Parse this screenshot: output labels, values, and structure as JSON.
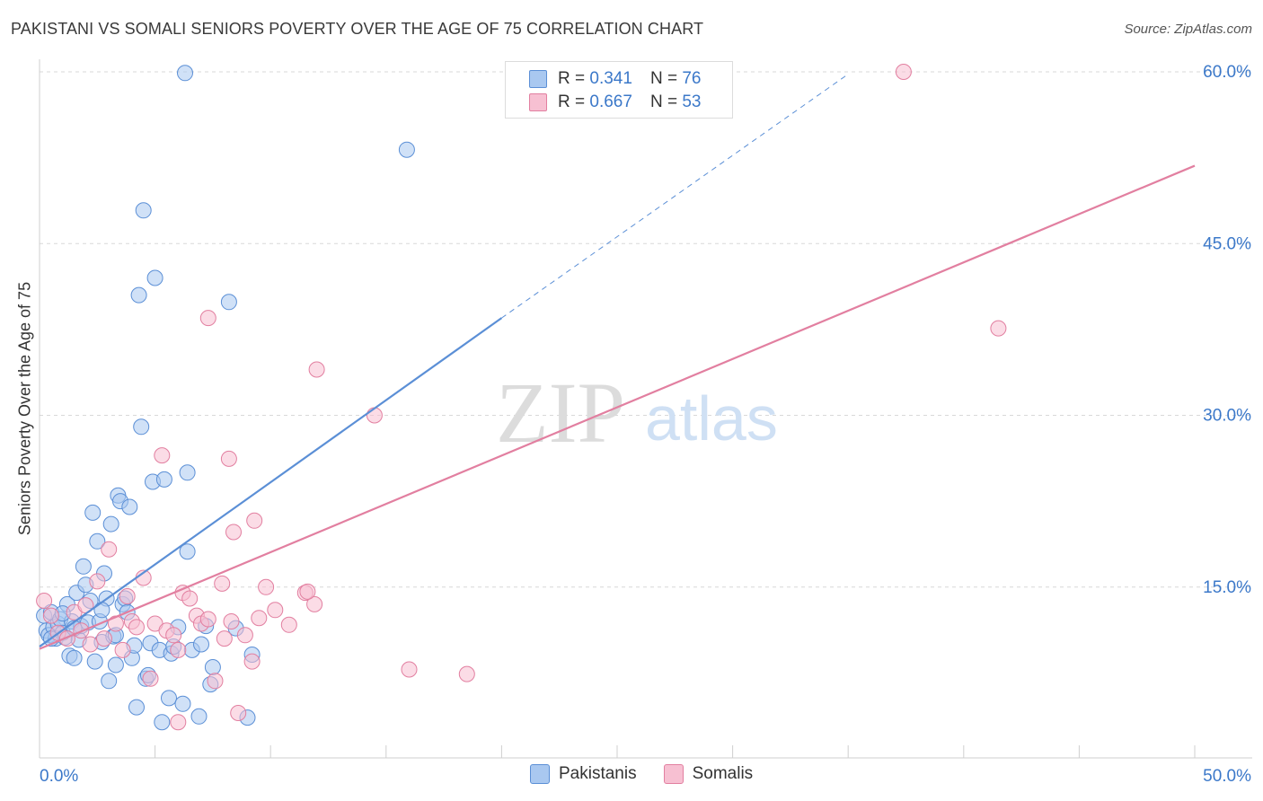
{
  "title": "PAKISTANI VS SOMALI SENIORS POVERTY OVER THE AGE OF 75 CORRELATION CHART",
  "source": "Source: ZipAtlas.com",
  "watermark": {
    "zip": "ZIP",
    "atlas": "atlas"
  },
  "legend": {
    "r_label": "R =",
    "n_label": "N =",
    "series": [
      {
        "r": "0.341",
        "n": "76",
        "color": "#a9c8f0",
        "border": "#5b8fd6"
      },
      {
        "r": "0.667",
        "n": "53",
        "color": "#f7c0d2",
        "border": "#e27fa0"
      }
    ]
  },
  "bottom_legend": [
    "Pakistanis",
    "Somalis"
  ],
  "chart_data": {
    "type": "scatter",
    "title": "PAKISTANI VS SOMALI SENIORS POVERTY OVER THE AGE OF 75 CORRELATION CHART",
    "xlabel": "",
    "ylabel": "Seniors Poverty Over the Age of 75",
    "xlim": [
      0,
      50
    ],
    "ylim": [
      0,
      60
    ],
    "x_tick_labels": [
      "0.0%",
      "50.0%"
    ],
    "y_ticks": [
      15,
      30,
      45,
      60
    ],
    "y_tick_labels": [
      "15.0%",
      "30.0%",
      "45.0%",
      "60.0%"
    ],
    "grid": "horizontal dashed",
    "legend_position": "top-center",
    "series": [
      {
        "name": "Pakistanis",
        "color": "#5b8fd6",
        "fill": "#a9c8f0",
        "trend": {
          "x0": 0,
          "y0": 9.8,
          "x1": 20,
          "y1": 38.5,
          "dashed_to": {
            "x": 35,
            "y": 59.8
          }
        },
        "points": [
          [
            0.2,
            12.5
          ],
          [
            0.3,
            11.2
          ],
          [
            0.4,
            10.8
          ],
          [
            0.5,
            12.8
          ],
          [
            0.6,
            11.5
          ],
          [
            0.7,
            10.5
          ],
          [
            0.8,
            11.8
          ],
          [
            0.9,
            12.2
          ],
          [
            1.0,
            11.0
          ],
          [
            1.1,
            10.6
          ],
          [
            1.2,
            13.5
          ],
          [
            1.3,
            9.0
          ],
          [
            1.4,
            12.0
          ],
          [
            1.5,
            8.8
          ],
          [
            1.6,
            14.5
          ],
          [
            1.7,
            10.4
          ],
          [
            1.8,
            11.6
          ],
          [
            1.9,
            16.8
          ],
          [
            2.0,
            15.2
          ],
          [
            2.1,
            11.9
          ],
          [
            2.2,
            13.8
          ],
          [
            2.3,
            21.5
          ],
          [
            2.4,
            8.5
          ],
          [
            2.5,
            19.0
          ],
          [
            2.6,
            12.0
          ],
          [
            2.7,
            10.2
          ],
          [
            2.8,
            16.2
          ],
          [
            2.9,
            14.0
          ],
          [
            3.0,
            6.8
          ],
          [
            3.1,
            20.5
          ],
          [
            3.2,
            10.7
          ],
          [
            3.3,
            8.2
          ],
          [
            3.4,
            23.0
          ],
          [
            3.5,
            22.5
          ],
          [
            3.6,
            13.5
          ],
          [
            3.7,
            14.0
          ],
          [
            3.8,
            12.8
          ],
          [
            3.9,
            22.0
          ],
          [
            4.0,
            8.8
          ],
          [
            4.1,
            9.9
          ],
          [
            4.2,
            4.5
          ],
          [
            4.3,
            40.5
          ],
          [
            4.4,
            29.0
          ],
          [
            4.5,
            47.9
          ],
          [
            4.6,
            7.0
          ],
          [
            4.7,
            7.3
          ],
          [
            4.8,
            10.1
          ],
          [
            4.9,
            24.2
          ],
          [
            5.0,
            42.0
          ],
          [
            5.2,
            9.5
          ],
          [
            5.3,
            3.2
          ],
          [
            5.4,
            24.4
          ],
          [
            5.6,
            5.3
          ],
          [
            5.7,
            9.2
          ],
          [
            5.8,
            9.8
          ],
          [
            6.0,
            11.5
          ],
          [
            6.2,
            4.8
          ],
          [
            6.4,
            18.1
          ],
          [
            6.6,
            9.5
          ],
          [
            6.9,
            3.7
          ],
          [
            7.0,
            10.0
          ],
          [
            7.2,
            11.6
          ],
          [
            6.3,
            59.9
          ],
          [
            6.4,
            25.0
          ],
          [
            7.5,
            8.0
          ],
          [
            7.4,
            6.5
          ],
          [
            8.2,
            39.9
          ],
          [
            8.5,
            11.4
          ],
          [
            9.0,
            3.6
          ],
          [
            9.2,
            9.1
          ],
          [
            15.9,
            53.2
          ],
          [
            1.0,
            12.7
          ],
          [
            1.5,
            11.4
          ],
          [
            2.7,
            13.0
          ],
          [
            3.3,
            10.8
          ],
          [
            0.5,
            10.5
          ]
        ]
      },
      {
        "name": "Somalis",
        "color": "#e27fa0",
        "fill": "#f7c0d2",
        "trend": {
          "x0": 0,
          "y0": 9.6,
          "x1": 50,
          "y1": 51.8
        },
        "points": [
          [
            0.2,
            13.8
          ],
          [
            0.5,
            12.5
          ],
          [
            0.8,
            11.0
          ],
          [
            1.2,
            10.5
          ],
          [
            1.5,
            12.8
          ],
          [
            1.8,
            11.2
          ],
          [
            2.2,
            10.0
          ],
          [
            2.5,
            15.5
          ],
          [
            2.8,
            10.5
          ],
          [
            3.0,
            18.3
          ],
          [
            3.3,
            11.8
          ],
          [
            3.6,
            9.5
          ],
          [
            3.8,
            14.2
          ],
          [
            4.0,
            12.0
          ],
          [
            4.2,
            11.5
          ],
          [
            4.5,
            15.8
          ],
          [
            4.8,
            7.0
          ],
          [
            5.0,
            11.8
          ],
          [
            5.3,
            26.5
          ],
          [
            5.5,
            11.2
          ],
          [
            5.8,
            10.8
          ],
          [
            6.0,
            9.5
          ],
          [
            6.2,
            14.5
          ],
          [
            6.5,
            14.0
          ],
          [
            6.8,
            12.5
          ],
          [
            7.0,
            11.8
          ],
          [
            7.3,
            12.2
          ],
          [
            7.6,
            6.8
          ],
          [
            8.0,
            10.5
          ],
          [
            8.3,
            12.0
          ],
          [
            8.6,
            4.0
          ],
          [
            8.9,
            10.8
          ],
          [
            9.2,
            8.5
          ],
          [
            9.5,
            12.3
          ],
          [
            9.8,
            15.0
          ],
          [
            10.2,
            13.0
          ],
          [
            10.8,
            11.7
          ],
          [
            11.5,
            14.5
          ],
          [
            12.0,
            34.0
          ],
          [
            14.5,
            30.0
          ],
          [
            16.0,
            7.8
          ],
          [
            18.5,
            7.4
          ],
          [
            6.0,
            3.2
          ],
          [
            7.3,
            38.5
          ],
          [
            8.2,
            26.2
          ],
          [
            8.4,
            19.8
          ],
          [
            9.3,
            20.8
          ],
          [
            11.9,
            13.5
          ],
          [
            7.9,
            15.3
          ],
          [
            37.4,
            60.0
          ],
          [
            41.5,
            37.6
          ],
          [
            11.6,
            14.6
          ],
          [
            2.0,
            13.4
          ]
        ]
      }
    ]
  }
}
